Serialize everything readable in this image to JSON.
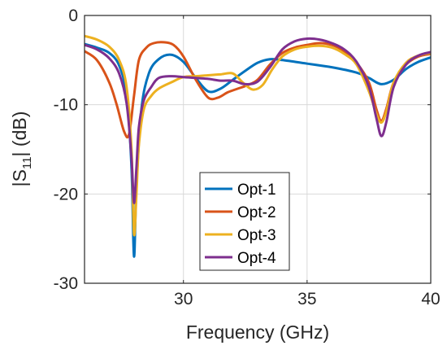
{
  "chart_data": {
    "type": "line",
    "xlabel": "Frequency (GHz)",
    "ylabel": {
      "prefix": "|S",
      "sub": "11",
      "suffix": "| (dB)"
    },
    "xlim": [
      26,
      40
    ],
    "ylim": [
      -30,
      0
    ],
    "xticks": [
      30,
      35,
      40
    ],
    "yticks": [
      0,
      -10,
      -20,
      -30
    ],
    "grid": true,
    "legend_position": "bottom-center",
    "series": [
      {
        "name": "Opt-1",
        "color": "#0072BD",
        "x": [
          26,
          26.5,
          27,
          27.4,
          27.7,
          27.9,
          28.0,
          28.1,
          28.3,
          28.6,
          29.0,
          29.5,
          30.0,
          30.5,
          31.0,
          31.5,
          32.0,
          32.5,
          33.0,
          33.5,
          34.0,
          35.0,
          36.0,
          37.0,
          37.5,
          38.0,
          38.5,
          39.0,
          39.5,
          40.0
        ],
        "y": [
          -3.2,
          -3.6,
          -4.2,
          -5.6,
          -9.0,
          -17.0,
          -27.0,
          -19.0,
          -10.5,
          -6.5,
          -4.9,
          -4.4,
          -5.2,
          -7.0,
          -8.5,
          -8.2,
          -7.2,
          -6.2,
          -5.3,
          -4.9,
          -5.0,
          -5.4,
          -5.8,
          -6.4,
          -7.0,
          -7.7,
          -7.2,
          -6.0,
          -5.2,
          -4.7
        ]
      },
      {
        "name": "Opt-2",
        "color": "#D95319",
        "x": [
          26,
          26.5,
          27,
          27.3,
          27.6,
          27.8,
          28.0,
          28.2,
          28.5,
          28.8,
          29.2,
          29.6,
          30.0,
          30.5,
          31.0,
          31.4,
          31.8,
          32.2,
          32.6,
          33.0,
          33.5,
          34.0,
          34.5,
          35.0,
          35.5,
          36.0,
          36.5,
          37.0,
          37.5,
          37.8,
          38.0,
          38.2,
          38.5,
          39.0,
          39.5,
          40.0
        ],
        "y": [
          -4.0,
          -5.0,
          -7.5,
          -10.0,
          -13.0,
          -13.3,
          -9.0,
          -5.0,
          -3.6,
          -3.1,
          -3.0,
          -3.3,
          -4.6,
          -7.2,
          -9.2,
          -9.2,
          -8.6,
          -8.2,
          -7.8,
          -7.2,
          -5.5,
          -4.2,
          -3.6,
          -3.3,
          -3.1,
          -3.3,
          -4.0,
          -5.3,
          -7.5,
          -10.5,
          -11.8,
          -10.5,
          -7.5,
          -5.5,
          -4.6,
          -4.3
        ]
      },
      {
        "name": "Opt-3",
        "color": "#EDB120",
        "x": [
          26,
          26.5,
          27,
          27.4,
          27.7,
          27.9,
          28.0,
          28.1,
          28.2,
          28.4,
          28.7,
          29.0,
          29.5,
          30.0,
          30.5,
          31.0,
          31.5,
          32.0,
          32.4,
          32.8,
          33.2,
          33.6,
          34.0,
          34.5,
          35.0,
          35.5,
          36.0,
          36.5,
          37.0,
          37.5,
          37.8,
          38.0,
          38.2,
          38.5,
          39.0,
          39.5,
          40.0
        ],
        "y": [
          -2.3,
          -2.7,
          -3.5,
          -5.0,
          -8.0,
          -15.0,
          -24.5,
          -20.0,
          -14.5,
          -10.5,
          -9.0,
          -8.2,
          -7.5,
          -6.9,
          -6.8,
          -6.7,
          -6.6,
          -6.5,
          -7.5,
          -8.3,
          -7.8,
          -6.0,
          -4.6,
          -3.8,
          -3.5,
          -3.4,
          -3.6,
          -4.3,
          -5.5,
          -8.5,
          -11.0,
          -12.0,
          -10.8,
          -7.5,
          -5.3,
          -4.5,
          -4.2
        ]
      },
      {
        "name": "Opt-4",
        "color": "#7E2F8E",
        "x": [
          26,
          26.5,
          27,
          27.4,
          27.7,
          27.9,
          28.0,
          28.1,
          28.2,
          28.4,
          28.7,
          29.0,
          29.5,
          30.0,
          30.5,
          31.0,
          31.5,
          32.0,
          32.5,
          33.0,
          33.5,
          34.0,
          34.5,
          35.0,
          35.5,
          36.0,
          36.5,
          37.0,
          37.5,
          37.8,
          38.0,
          38.2,
          38.5,
          39.0,
          39.5,
          40.0
        ],
        "y": [
          -3.3,
          -3.8,
          -4.8,
          -6.5,
          -9.8,
          -16.0,
          -21.0,
          -17.0,
          -12.5,
          -9.5,
          -8.0,
          -7.0,
          -6.8,
          -6.9,
          -7.0,
          -7.1,
          -7.3,
          -7.3,
          -7.7,
          -7.4,
          -5.8,
          -3.8,
          -2.9,
          -2.6,
          -2.7,
          -3.1,
          -3.8,
          -5.2,
          -8.0,
          -11.5,
          -13.5,
          -12.0,
          -8.0,
          -5.5,
          -4.5,
          -4.1
        ]
      }
    ]
  }
}
